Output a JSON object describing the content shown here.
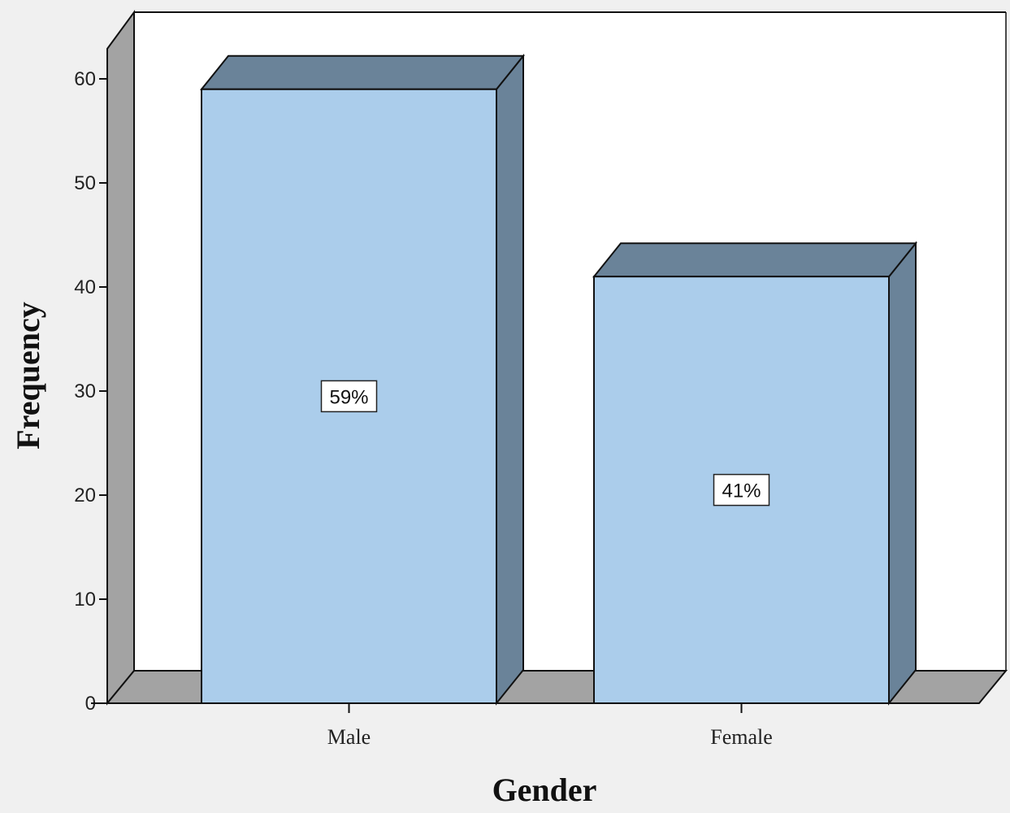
{
  "chart_data": {
    "type": "bar",
    "style": "3d",
    "categories": [
      "Male",
      "Female"
    ],
    "values": [
      59,
      41
    ],
    "data_labels": [
      "59%",
      "41%"
    ],
    "xlabel": "Gender",
    "ylabel": "Frequency",
    "ylim": [
      0,
      60
    ],
    "yticks": [
      "0",
      "10",
      "20",
      "30",
      "40",
      "50",
      "60"
    ],
    "grid": false,
    "legend": "none",
    "colors": {
      "bar_front": "#abcdeb",
      "bar_top_side": "#6a8399",
      "wall": "#a3a3a3",
      "plot_background": "#ffffff",
      "page_background": "#f0f0f0"
    }
  }
}
